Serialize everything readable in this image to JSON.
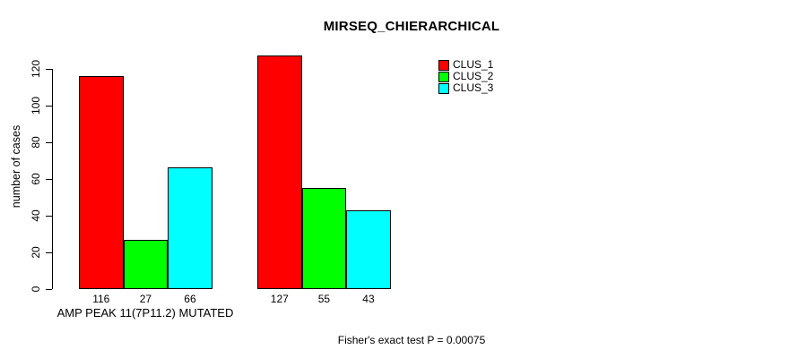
{
  "chart_data": {
    "type": "bar",
    "title": "MIRSEQ_CHIERARCHICAL",
    "ylabel": "number of cases",
    "xlabel": "",
    "ylim": [
      0,
      130
    ],
    "yticks": [
      0,
      20,
      40,
      60,
      80,
      100,
      120
    ],
    "categories": [
      "AMP PEAK 11(7P11.2) MUTATED",
      ""
    ],
    "series": [
      {
        "name": "CLUS_1",
        "color": "#ff0000",
        "values": [
          116,
          127
        ]
      },
      {
        "name": "CLUS_2",
        "color": "#00ff00",
        "values": [
          27,
          55
        ]
      },
      {
        "name": "CLUS_3",
        "color": "#00ffff",
        "values": [
          66,
          43
        ]
      }
    ],
    "bar_value_labels_shown": true,
    "annotation": "Fisher's exact test P = 0.00075",
    "legend_position": "top-right",
    "grid": false,
    "colors": {
      "background": "#ffffff",
      "text": "#000000",
      "axis": "#000000",
      "bar_border": "#000000"
    }
  }
}
